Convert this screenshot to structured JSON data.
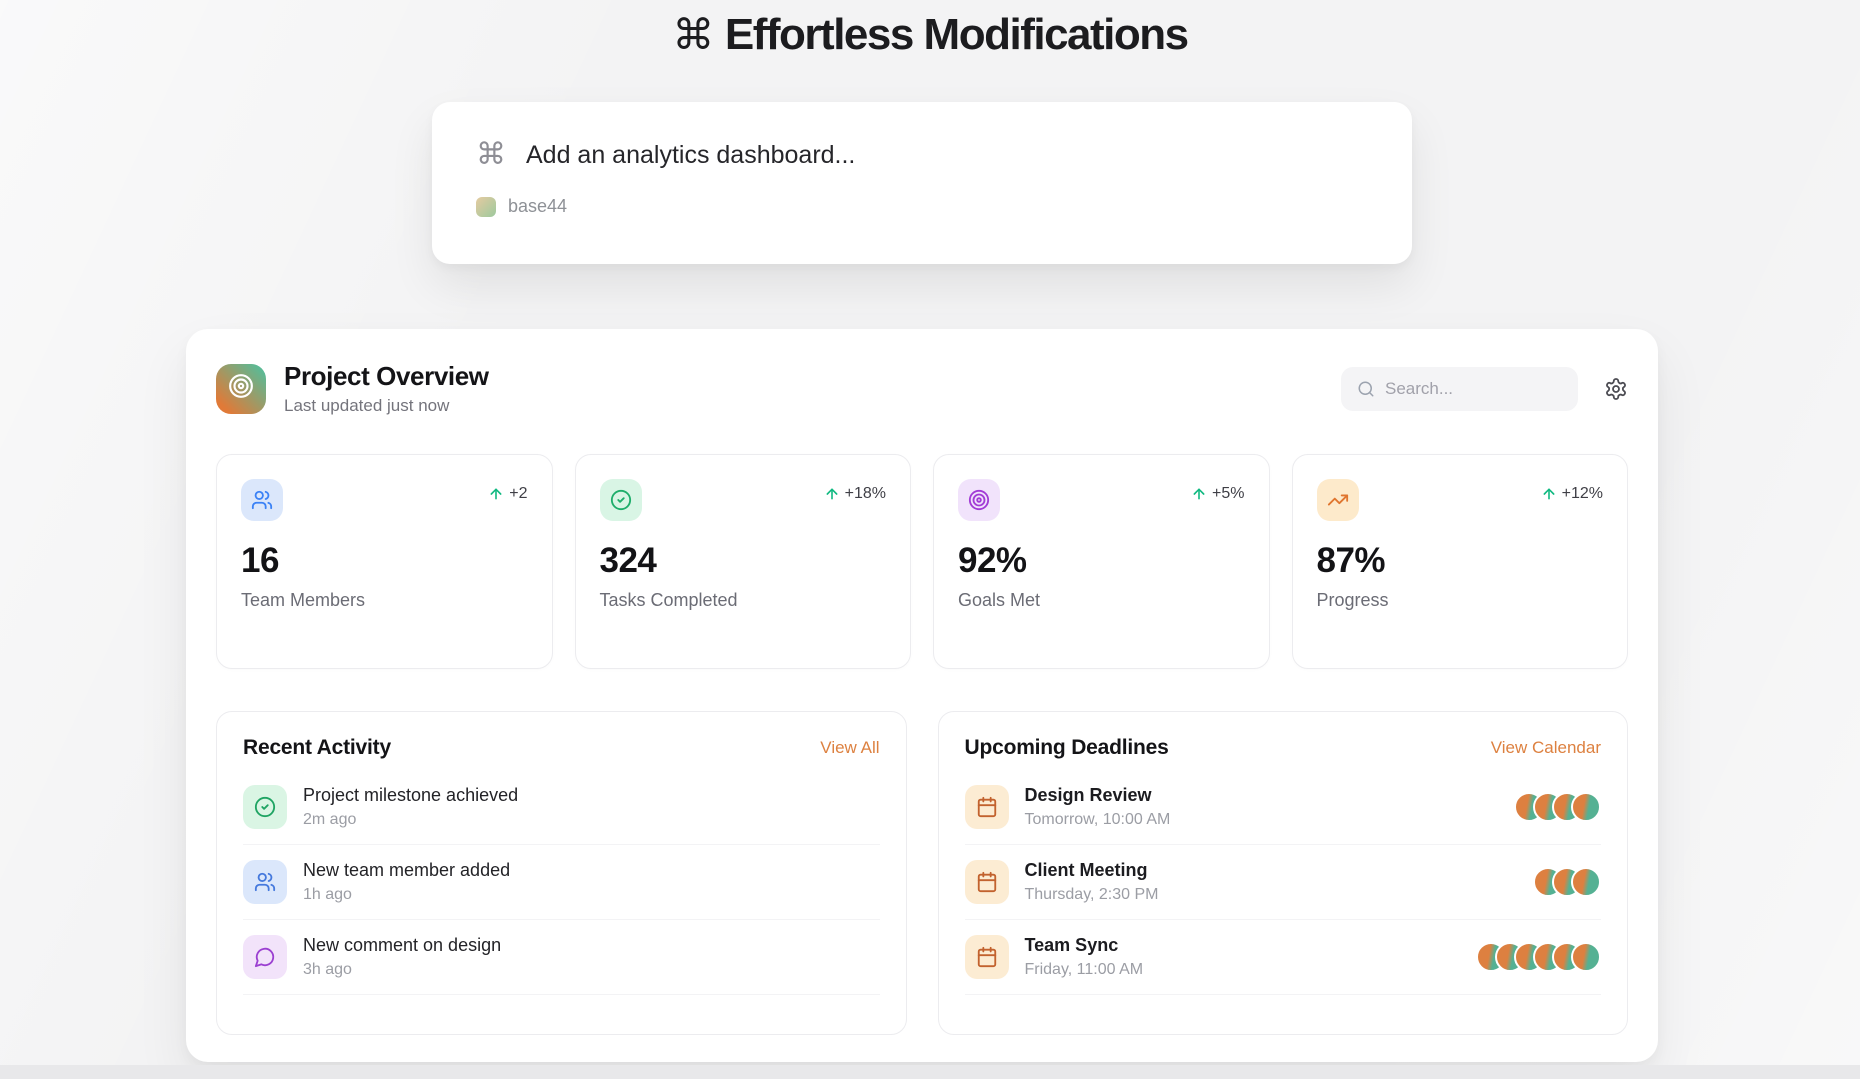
{
  "page": {
    "title": "Effortless Modifications",
    "title_icon_glyph": "⌘"
  },
  "prompt_card": {
    "icon_glyph": "⌘",
    "placeholder": "Add an analytics dashboard...",
    "badge_label": "base44"
  },
  "dashboard": {
    "header": {
      "title": "Project Overview",
      "subtitle": "Last updated just now",
      "search_placeholder": "Search...",
      "logo_icon": "target",
      "settings_icon": "gear",
      "search_icon": "search"
    },
    "stats": [
      {
        "icon": "users",
        "icon_bg": "#dbe7fb",
        "icon_color": "#3b82f6",
        "change": "+2",
        "value": "16",
        "label": "Team Members"
      },
      {
        "icon": "check-circle",
        "icon_bg": "#d9f5e5",
        "icon_color": "#1fae6b",
        "change": "+18%",
        "value": "324",
        "label": "Tasks Completed"
      },
      {
        "icon": "target",
        "icon_bg": "#f1e3fb",
        "icon_color": "#a23bd6",
        "change": "+5%",
        "value": "92%",
        "label": "Goals Met"
      },
      {
        "icon": "trending-up",
        "icon_bg": "#fdeacb",
        "icon_color": "#e0762f",
        "change": "+12%",
        "value": "87%",
        "label": "Progress"
      }
    ],
    "activity": {
      "title": "Recent Activity",
      "action_label": "View All",
      "items": [
        {
          "icon": "check-circle",
          "icon_bg": "#daf5e4",
          "icon_color": "#1fa463",
          "title": "Project milestone achieved",
          "time": "2m ago"
        },
        {
          "icon": "users",
          "icon_bg": "#dbe7fb",
          "icon_color": "#4579dd",
          "title": "New team member added",
          "time": "1h ago"
        },
        {
          "icon": "message-circle",
          "icon_bg": "#f2e3fa",
          "icon_color": "#9b3fd1",
          "title": "New comment on design",
          "time": "3h ago"
        }
      ]
    },
    "deadlines": {
      "title": "Upcoming Deadlines",
      "action_label": "View Calendar",
      "items": [
        {
          "icon": "calendar",
          "icon_bg": "#fcecd3",
          "icon_color": "#c2622e",
          "title": "Design Review",
          "time": "Tomorrow, 10:00 AM",
          "avatars": 4
        },
        {
          "icon": "calendar",
          "icon_bg": "#fcecd3",
          "icon_color": "#c2622e",
          "title": "Client Meeting",
          "time": "Thursday, 2:30 PM",
          "avatars": 3
        },
        {
          "icon": "calendar",
          "icon_bg": "#fcecd3",
          "icon_color": "#c2622e",
          "title": "Team Sync",
          "time": "Friday, 11:00 AM",
          "avatars": 6
        }
      ]
    },
    "colors": {
      "accent_link": "#dd8140",
      "positive_arrow": "#10b981",
      "logo_gradient_start": "#e07a38",
      "logo_gradient_end": "#5bba95",
      "avatar_gradient_start": "#dd8040",
      "avatar_gradient_end": "#55b193"
    }
  }
}
